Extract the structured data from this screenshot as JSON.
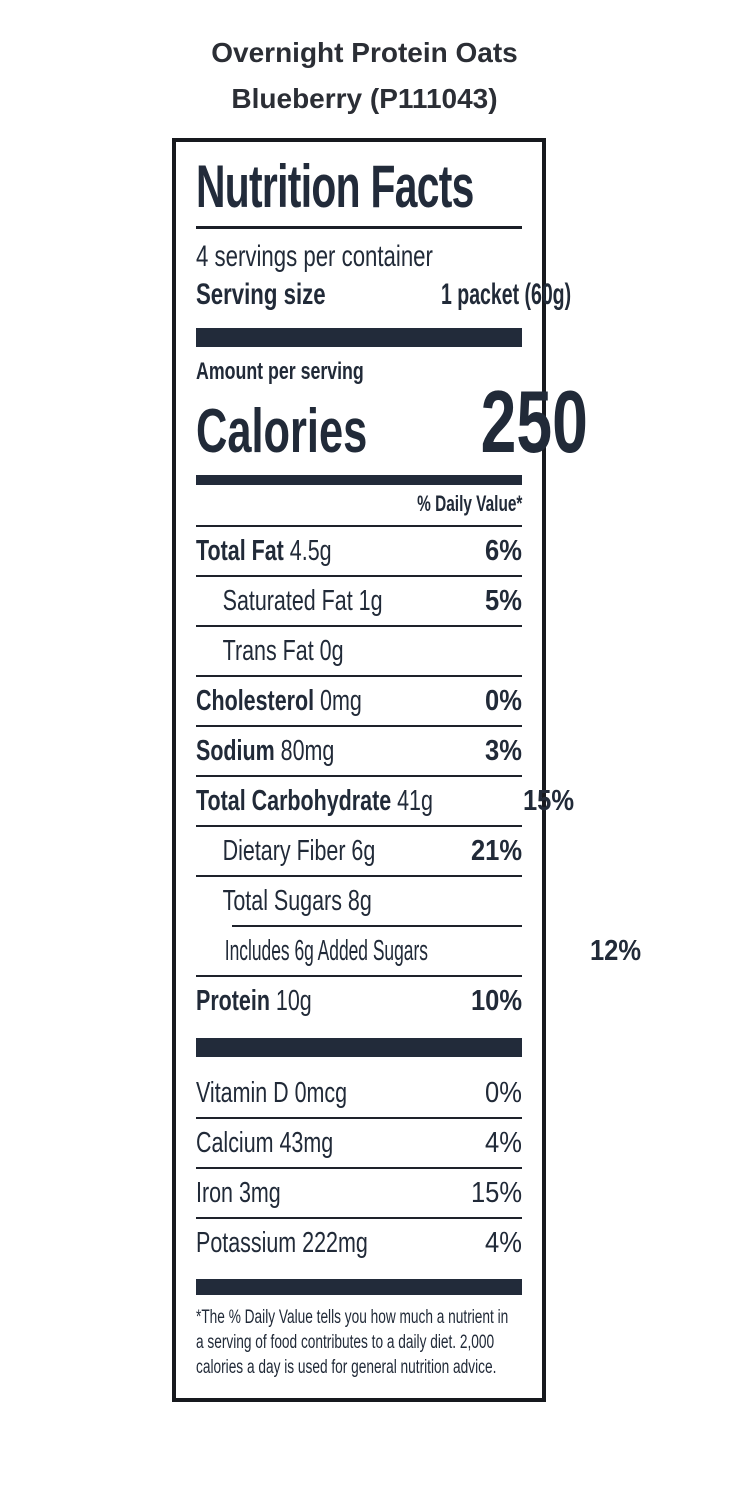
{
  "page": {
    "title_line1": "Overnight Protein Oats",
    "title_line2": "Blueberry (P111043)"
  },
  "label": {
    "title": "Nutrition Facts",
    "servings_per_container": "4 servings per container",
    "serving_size": {
      "label": "Serving size",
      "value": "1 packet (60g)"
    },
    "amount_per_serving": "Amount per serving",
    "calories": {
      "label": "Calories",
      "value": "250"
    },
    "daily_value_header": "% Daily Value*",
    "nutrients": [
      {
        "name_bold": "Total Fat",
        "name_rest": " 4.5g",
        "dv": "6%"
      },
      {
        "name_bold": "",
        "name_rest": "Saturated Fat 1g",
        "dv": "5%"
      },
      {
        "name_bold": "",
        "name_rest": "Trans Fat 0g",
        "dv": ""
      },
      {
        "name_bold": "Cholesterol",
        "name_rest": " 0mg",
        "dv": "0%"
      },
      {
        "name_bold": "Sodium",
        "name_rest": " 80mg",
        "dv": "3%"
      },
      {
        "name_bold": "Total Carbohydrate",
        "name_rest": " 41g",
        "dv": "15%"
      },
      {
        "name_bold": "",
        "name_rest": "Dietary Fiber 6g",
        "dv": "21%"
      },
      {
        "name_bold": "",
        "name_rest": "Total Sugars 8g",
        "dv": ""
      },
      {
        "name_bold": "",
        "name_rest": "Includes 6g Added Sugars",
        "dv": "12%"
      },
      {
        "name_bold": "Protein",
        "name_rest": " 10g",
        "dv": "10%"
      }
    ],
    "micronutrients": [
      {
        "name": "Vitamin D 0mcg",
        "dv": "0%"
      },
      {
        "name": "Calcium 43mg",
        "dv": "4%"
      },
      {
        "name": "Iron 3mg",
        "dv": "15%"
      },
      {
        "name": "Potassium 222mg",
        "dv": "4%"
      }
    ],
    "footnote_lines": [
      "*The % Daily Value tells you how much a nutrient in",
      "a serving of food contributes to a daily diet. 2,000",
      "calories a day is used for general nutrition advice."
    ]
  },
  "colors": {
    "ink": "#212a38",
    "bar": "#222b3a",
    "box_border": "#17191e",
    "page_title": "#2b2e35",
    "background": "#ffffff"
  }
}
